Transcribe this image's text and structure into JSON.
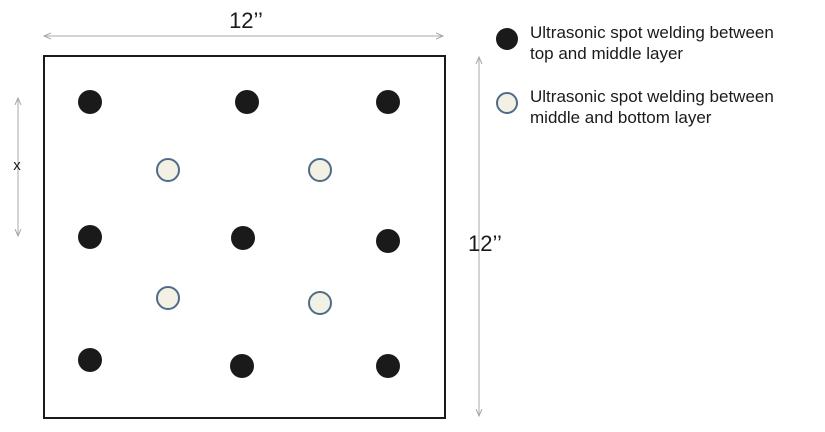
{
  "dimensions": {
    "width_label": "12’’",
    "height_label": "12’’",
    "spacing_label": "x"
  },
  "legend": {
    "top_middle": "Ultrasonic spot welding between\ntop and middle layer",
    "middle_bottom": "Ultrasonic spot welding between\nmiddle and bottom layer"
  },
  "colors": {
    "top_middle_weld": "#1a1a1a",
    "middle_bottom_weld_fill": "#f2f1e4",
    "middle_bottom_weld_stroke": "#4f6b8a",
    "arrow": "#a8a8a8"
  }
}
